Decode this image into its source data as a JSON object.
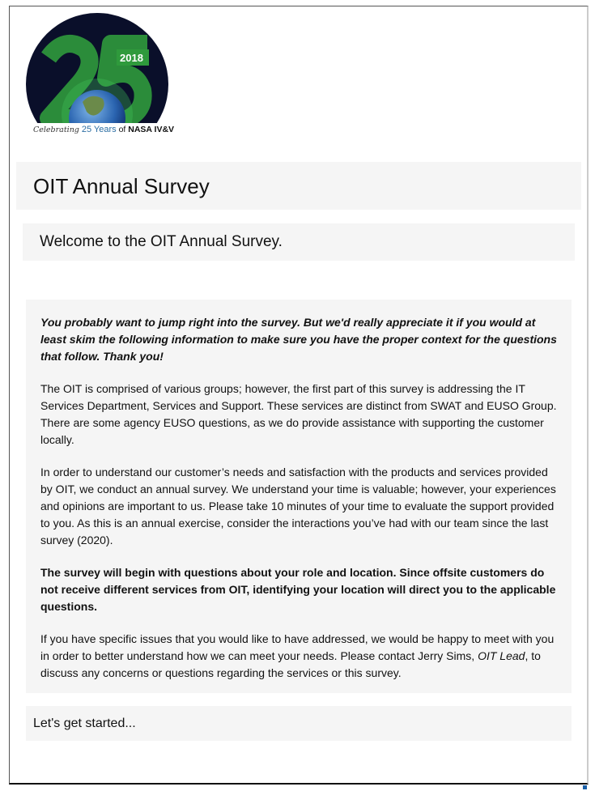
{
  "logo": {
    "year": "2018",
    "number": "25",
    "caption_prefix": "Celebrating",
    "caption_years": "25 Years",
    "caption_of": "of",
    "caption_org": "NASA IV&V"
  },
  "header": {
    "title": "OIT Annual Survey"
  },
  "welcome": {
    "text": "Welcome to the OIT Annual Survey."
  },
  "intro": {
    "lead": "You probably want to jump right into the survey. But we'd really appreciate it if you would at least skim the following information to make sure you have the proper context for the questions that follow. Thank you!",
    "p1": "The OIT is comprised of various groups; however, the first part of this survey is addressing the IT Services Department, Services and Support. These services are distinct from SWAT and EUSO Group. There are some agency EUSO questions, as we do provide assistance with supporting the customer locally.",
    "p2": "In order to understand our customer’s needs and satisfaction with the products and services provided by OIT, we conduct an annual survey. We understand your time is valuable; however, your experiences and opinions are important to us. Please take 10 minutes of your time to evaluate the support provided to you. As this is an annual exercise, consider the interactions you’ve had with our team since the last survey (2020).",
    "p3": "The survey will begin with questions about your role and location. Since offsite customers do not receive different services from OIT, identifying your location will direct you to the applicable questions.",
    "p4_a": "If you have specific issues that you would like to have addressed, we would be happy to meet with you in order to better understand how we can meet your needs. Please contact Jerry Sims, ",
    "p4_role": "OIT Lead",
    "p4_b": ", to discuss any concerns or questions regarding the services or this survey."
  },
  "start": {
    "text": "Let's get started..."
  }
}
